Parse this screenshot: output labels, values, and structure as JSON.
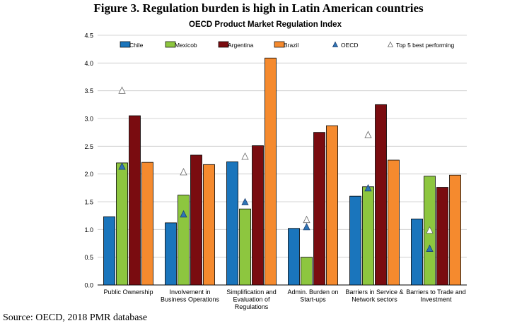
{
  "figure_title": "Figure 3. Regulation burden is high in Latin American countries",
  "source": "Source: OECD, 2018 PMR database",
  "chart_data": {
    "type": "bar",
    "title": "OECD Product Market Regulation Index",
    "xlabel": "",
    "ylabel": "",
    "ylim": [
      0,
      4.5
    ],
    "yticks": [
      "0.0",
      "0.5",
      "1.0",
      "1.5",
      "2.0",
      "2.5",
      "3.0",
      "3.5",
      "4.0",
      "4.5"
    ],
    "grid": true,
    "legend_position": "top",
    "categories": [
      [
        "Public Ownership"
      ],
      [
        "Involvement in",
        "Business Operations"
      ],
      [
        "Simplification and",
        "Evaluation of",
        "Regulations"
      ],
      [
        "Admin. Burden  on",
        "Start-ups"
      ],
      [
        "Barriers in Service &",
        "Network sectors"
      ],
      [
        "Barriers to Trade and",
        "Investment"
      ]
    ],
    "series": [
      {
        "name": "Chile",
        "color": "#1a75bc",
        "values": [
          1.23,
          1.12,
          2.22,
          1.02,
          1.6,
          1.19
        ]
      },
      {
        "name": "Mexicob",
        "color": "#8dc63f",
        "values": [
          2.2,
          1.62,
          1.37,
          0.5,
          1.77,
          1.96
        ]
      },
      {
        "name": "Argentina",
        "color": "#7a0c10",
        "values": [
          3.05,
          2.34,
          2.51,
          2.75,
          3.25,
          1.76
        ]
      },
      {
        "name": "Brazil",
        "color": "#f58a2e",
        "values": [
          2.21,
          2.17,
          4.09,
          2.87,
          2.25,
          1.98
        ]
      }
    ],
    "markers": [
      {
        "name": "OECD",
        "color": "#2e75b6",
        "values": [
          2.14,
          1.28,
          1.5,
          1.05,
          1.75,
          0.66
        ]
      },
      {
        "name": "Top 5 best performing",
        "color": "#ffffff",
        "values": [
          3.51,
          2.04,
          2.32,
          1.18,
          2.71,
          0.99
        ]
      }
    ]
  }
}
